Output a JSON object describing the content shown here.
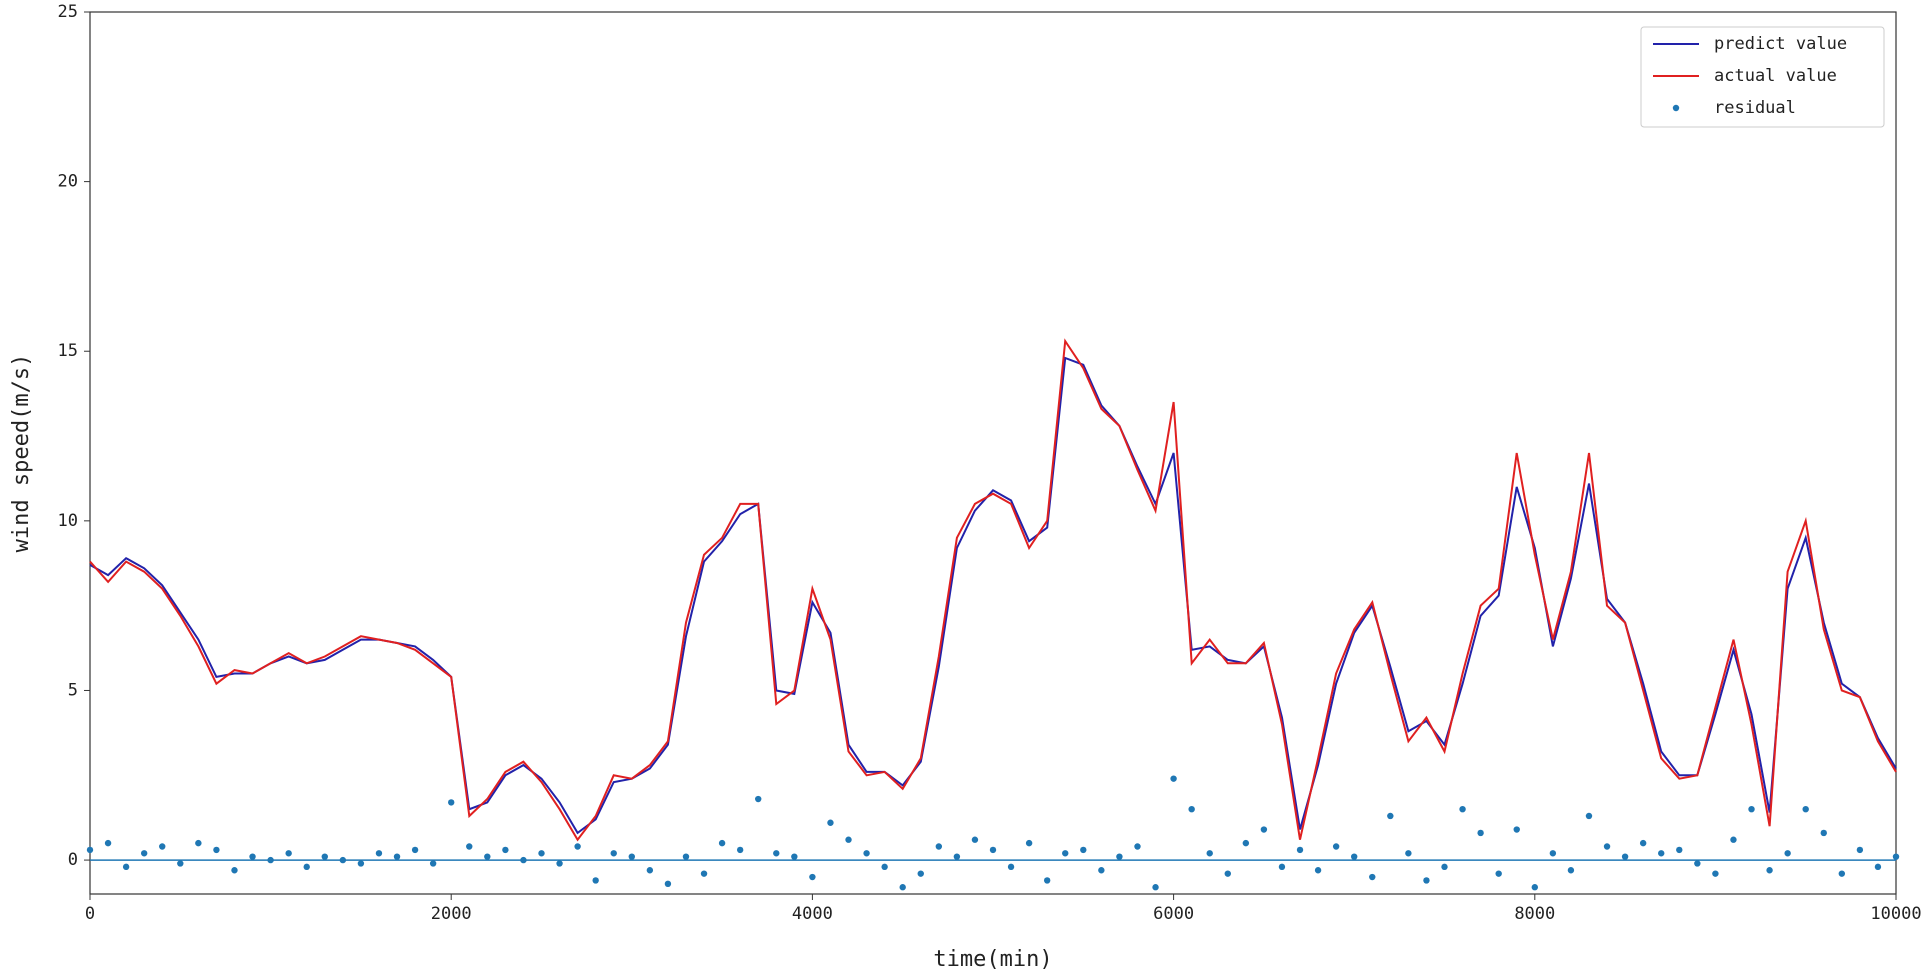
{
  "chart_data": {
    "type": "line",
    "xlabel": "time(min)",
    "ylabel": "wind speed(m/s)",
    "xlim": [
      0,
      10000
    ],
    "xticks": [
      0,
      2000,
      4000,
      6000,
      8000,
      10000
    ],
    "ylim": [
      -1,
      25
    ],
    "yticks": [
      0,
      5,
      10,
      15,
      20,
      25
    ],
    "legend": "upper right",
    "hline": {
      "value": 0,
      "color": "#1f77b4"
    },
    "x": [
      0,
      100,
      200,
      300,
      400,
      500,
      600,
      700,
      800,
      900,
      1000,
      1100,
      1200,
      1300,
      1400,
      1500,
      1600,
      1700,
      1800,
      1900,
      2000,
      2100,
      2200,
      2300,
      2400,
      2500,
      2600,
      2700,
      2800,
      2900,
      3000,
      3100,
      3200,
      3300,
      3400,
      3500,
      3600,
      3700,
      3800,
      3900,
      4000,
      4100,
      4200,
      4300,
      4400,
      4500,
      4600,
      4700,
      4800,
      4900,
      5000,
      5100,
      5200,
      5300,
      5400,
      5500,
      5600,
      5700,
      5800,
      5900,
      6000,
      6100,
      6200,
      6300,
      6400,
      6500,
      6600,
      6700,
      6800,
      6900,
      7000,
      7100,
      7200,
      7300,
      7400,
      7500,
      7600,
      7700,
      7800,
      7900,
      8000,
      8100,
      8200,
      8300,
      8400,
      8500,
      8600,
      8700,
      8800,
      8900,
      9000,
      9100,
      9200,
      9300,
      9400,
      9500,
      9600,
      9700,
      9800,
      9900,
      10000
    ],
    "series": [
      {
        "name": "predict value",
        "color": "#2222aa",
        "kind": "line",
        "values": [
          8.7,
          8.4,
          8.9,
          8.6,
          8.1,
          7.3,
          6.5,
          5.4,
          5.5,
          5.5,
          5.8,
          6.0,
          5.8,
          5.9,
          6.2,
          6.5,
          6.5,
          6.4,
          6.3,
          5.9,
          5.4,
          1.5,
          1.7,
          2.5,
          2.8,
          2.4,
          1.7,
          0.8,
          1.2,
          2.3,
          2.4,
          2.7,
          3.4,
          6.6,
          8.8,
          9.4,
          10.2,
          10.5,
          5.0,
          4.9,
          7.6,
          6.7,
          3.4,
          2.6,
          2.6,
          2.2,
          2.9,
          5.7,
          9.2,
          10.3,
          10.9,
          10.6,
          9.4,
          9.8,
          14.8,
          14.6,
          13.4,
          12.8,
          11.6,
          10.5,
          12.0,
          6.2,
          6.3,
          5.9,
          5.8,
          6.3,
          4.2,
          0.9,
          2.8,
          5.2,
          6.7,
          7.5,
          5.7,
          3.8,
          4.1,
          3.4,
          5.2,
          7.2,
          7.8,
          11.0,
          9.2,
          6.3,
          8.3,
          11.1,
          7.7,
          7.0,
          5.2,
          3.2,
          2.5,
          2.5,
          4.3,
          6.2,
          4.3,
          1.4,
          8.0,
          9.5,
          7.0,
          5.2,
          4.8,
          3.6,
          2.7
        ]
      },
      {
        "name": "actual value",
        "color": "#e02020",
        "kind": "line",
        "values": [
          8.8,
          8.2,
          8.8,
          8.5,
          8.0,
          7.2,
          6.3,
          5.2,
          5.6,
          5.5,
          5.8,
          6.1,
          5.8,
          6.0,
          6.3,
          6.6,
          6.5,
          6.4,
          6.2,
          5.8,
          5.4,
          1.3,
          1.8,
          2.6,
          2.9,
          2.3,
          1.5,
          0.6,
          1.3,
          2.5,
          2.4,
          2.8,
          3.5,
          7.0,
          9.0,
          9.5,
          10.5,
          10.5,
          4.6,
          5.0,
          8.0,
          6.5,
          3.2,
          2.5,
          2.6,
          2.1,
          3.0,
          6.0,
          9.5,
          10.5,
          10.8,
          10.5,
          9.2,
          10.0,
          15.3,
          14.5,
          13.3,
          12.8,
          11.5,
          10.3,
          13.5,
          5.8,
          6.5,
          5.8,
          5.8,
          6.4,
          4.0,
          0.6,
          3.0,
          5.5,
          6.8,
          7.6,
          5.5,
          3.5,
          4.2,
          3.2,
          5.5,
          7.5,
          8.0,
          12.0,
          9.0,
          6.5,
          8.5,
          12.0,
          7.5,
          7.0,
          5.0,
          3.0,
          2.4,
          2.5,
          4.5,
          6.5,
          4.0,
          1.0,
          8.5,
          10.0,
          6.8,
          5.0,
          4.8,
          3.5,
          2.6
        ]
      },
      {
        "name": "residual",
        "color": "#1f77b4",
        "kind": "scatter",
        "values": [
          0.3,
          0.5,
          -0.2,
          0.2,
          0.4,
          -0.1,
          0.5,
          0.3,
          -0.3,
          0.1,
          0.0,
          0.2,
          -0.2,
          0.1,
          0.0,
          -0.1,
          0.2,
          0.1,
          0.3,
          -0.1,
          1.7,
          0.4,
          0.1,
          0.3,
          0.0,
          0.2,
          -0.1,
          0.4,
          -0.6,
          0.2,
          0.1,
          -0.3,
          -0.7,
          0.1,
          -0.4,
          0.5,
          0.3,
          1.8,
          0.2,
          0.1,
          -0.5,
          1.1,
          0.6,
          0.2,
          -0.2,
          -0.8,
          -0.4,
          0.4,
          0.1,
          0.6,
          0.3,
          -0.2,
          0.5,
          -0.6,
          0.2,
          0.3,
          -0.3,
          0.1,
          0.4,
          -0.8,
          2.4,
          1.5,
          0.2,
          -0.4,
          0.5,
          0.9,
          -0.2,
          0.3,
          -0.3,
          0.4,
          0.1,
          -0.5,
          1.3,
          0.2,
          -0.6,
          -0.2,
          1.5,
          0.8,
          -0.4,
          0.9,
          -0.8,
          0.2,
          -0.3,
          1.3,
          0.4,
          0.1,
          0.5,
          0.2,
          0.3,
          -0.1,
          -0.4,
          0.6,
          1.5,
          -0.3,
          0.2,
          1.5,
          0.8,
          -0.4,
          0.3,
          -0.2,
          0.1
        ]
      }
    ]
  }
}
